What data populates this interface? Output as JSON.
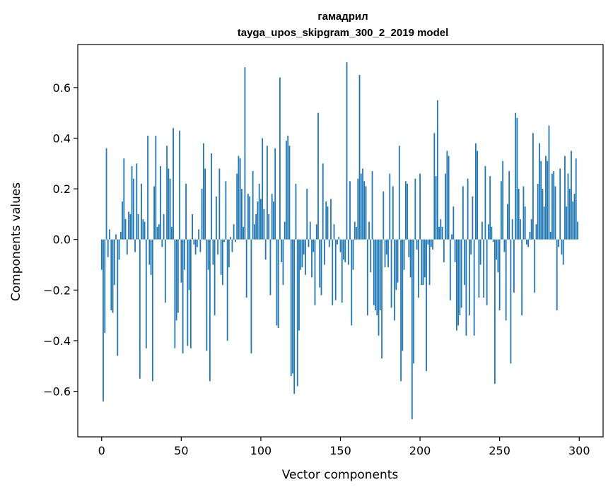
{
  "chart_data": {
    "type": "bar",
    "title": "гамадрил",
    "subtitle": "tayga_upos_skipgram_300_2_2019 model",
    "xlabel": "Vector components",
    "ylabel": "Components values",
    "xlim": [
      -15,
      315
    ],
    "ylim": [
      -0.78,
      0.77
    ],
    "xticks": [
      0,
      50,
      100,
      150,
      200,
      250,
      300
    ],
    "xtick_labels": [
      "0",
      "50",
      "100",
      "150",
      "200",
      "250",
      "300"
    ],
    "yticks": [
      -0.6,
      -0.4,
      -0.2,
      0.0,
      0.2,
      0.4,
      0.6
    ],
    "ytick_labels": [
      "−0.6",
      "−0.4",
      "−0.2",
      "0.0",
      "0.2",
      "0.4",
      "0.6"
    ],
    "grid": false,
    "bar_color": "#1f77b4",
    "values": [
      -0.12,
      -0.64,
      -0.37,
      0.36,
      -0.07,
      0.04,
      -0.28,
      -0.29,
      -0.18,
      0.02,
      -0.46,
      -0.08,
      0.03,
      0.15,
      0.32,
      0.08,
      -0.06,
      0.11,
      0.1,
      0.29,
      0.24,
      -0.05,
      0.3,
      0.1,
      -0.55,
      0.22,
      0.08,
      0.07,
      -0.43,
      0.41,
      -0.1,
      -0.14,
      -0.56,
      0.21,
      0.41,
      0.05,
      0.06,
      0.29,
      -0.03,
      0.1,
      -0.25,
      0.37,
      0.28,
      0.24,
      0.05,
      0.44,
      -0.43,
      -0.32,
      -0.29,
      0.43,
      -0.17,
      -0.45,
      -0.12,
      0.22,
      -0.42,
      -0.2,
      -0.43,
      0.1,
      -0.02,
      -0.06,
      -0.03,
      0.04,
      -0.05,
      0.2,
      0.38,
      0.28,
      -0.44,
      -0.12,
      -0.56,
      0.34,
      -0.1,
      -0.3,
      0.17,
      -0.06,
      0.28,
      -0.14,
      -0.18,
      -0.01,
      0.23,
      -0.4,
      -0.11,
      0.01,
      -0.05,
      0.06,
      -0.01,
      0.26,
      0.33,
      0.32,
      0.2,
      0.05,
      0.68,
      -0.23,
      0.18,
      0.17,
      -0.45,
      0.27,
      0.06,
      0.1,
      0.15,
      0.22,
      0.16,
      0.4,
      0.12,
      -0.08,
      0.37,
      0.1,
      -0.22,
      0.18,
      0.15,
      0.36,
      -0.34,
      -0.35,
      0.64,
      -0.09,
      -0.18,
      0.07,
      0.39,
      0.41,
      0.37,
      -0.54,
      -0.53,
      -0.61,
      0.22,
      -0.58,
      -0.36,
      -0.12,
      -0.11,
      -0.06,
      -0.14,
      0.2,
      -0.03,
      0.07,
      -0.15,
      -0.05,
      -0.26,
      0.06,
      0.5,
      -0.19,
      -0.22,
      0.3,
      -0.1,
      0.15,
      0.13,
      -0.03,
      0.16,
      -0.26,
      0.06,
      -0.24,
      -0.02,
      0.01,
      -0.05,
      -0.25,
      -0.08,
      -0.09,
      0.7,
      -0.1,
      0.23,
      -0.34,
      -0.12,
      0.07,
      0.05,
      0.24,
      0.65,
      0.26,
      0.28,
      0.23,
      0.21,
      -0.3,
      0.07,
      -0.13,
      0.27,
      -0.26,
      -0.28,
      -0.3,
      -0.38,
      -0.28,
      -0.47,
      0.19,
      -0.11,
      -0.06,
      -0.11,
      0.26,
      -0.27,
      0.21,
      -0.32,
      -0.2,
      -0.17,
      0.37,
      -0.56,
      -0.44,
      -0.12,
      0.23,
      0.22,
      -0.07,
      -0.15,
      -0.71,
      -0.49,
      0.24,
      -0.04,
      -0.23,
      0.26,
      -0.18,
      -0.18,
      -0.15,
      -0.52,
      -0.02,
      -0.18,
      -0.03,
      -0.04,
      0.42,
      0.25,
      0.55,
      0.05,
      0.08,
      0.05,
      -0.09,
      0.26,
      0.35,
      0.33,
      -0.24,
      0.02,
      0.13,
      -0.09,
      -0.36,
      -0.34,
      -0.3,
      -0.27,
      0.21,
      -0.18,
      -0.38,
      0.24,
      -0.3,
      -0.06,
      0.17,
      -0.38,
      0.38,
      0.35,
      -0.23,
      -0.1,
      0.07,
      -0.23,
      0.29,
      -0.26,
      0.06,
      0.25,
      0.05,
      -0.01,
      -0.57,
      -0.08,
      -0.13,
      -0.28,
      0.23,
      0.31,
      -0.05,
      -0.32,
      0.14,
      0.27,
      -0.49,
      0.08,
      -0.21,
      0.5,
      0.48,
      0.2,
      0.08,
      -0.3,
      0.21,
      0.13,
      -0.02,
      -0.03,
      0.03,
      0.08,
      0.42,
      -0.21,
      0.06,
      0.22,
      0.38,
      0.31,
      0.2,
      0.13,
      0.33,
      0.31,
      0.45,
      0.03,
      0.26,
      0.27,
      0.21,
      -0.28,
      -0.03,
      0.28,
      -0.06,
      -0.1,
      0.33,
      0.13,
      0.26,
      0.2,
      0.35,
      0.15,
      0.18,
      0.32,
      0.07
    ]
  }
}
